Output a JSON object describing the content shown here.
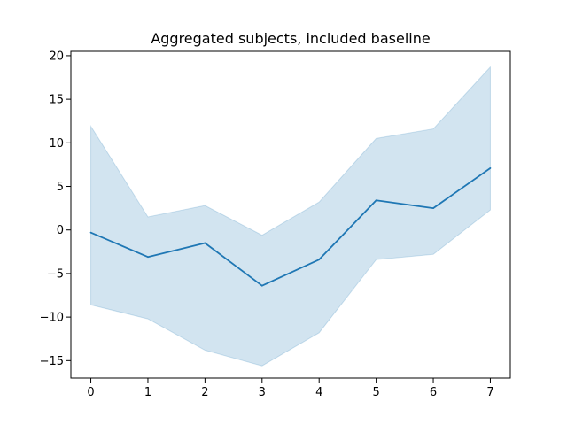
{
  "chart_data": {
    "type": "line",
    "title": "Aggregated subjects, included baseline",
    "xlabel": "",
    "ylabel": "",
    "x": [
      0,
      1,
      2,
      3,
      4,
      5,
      6,
      7
    ],
    "series": [
      {
        "values": [
          -0.3,
          -3.1,
          -1.5,
          -6.4,
          -3.4,
          3.4,
          2.5,
          7.1
        ],
        "band_upper": [
          11.9,
          1.5,
          2.8,
          -0.6,
          3.2,
          10.5,
          11.6,
          18.7
        ],
        "band_lower": [
          -8.6,
          -10.2,
          -13.8,
          -15.6,
          -11.8,
          -3.4,
          -2.8,
          2.3
        ],
        "color": "#1f77b4",
        "band_color": "#1f77b4"
      }
    ],
    "xlim": [
      -0.35,
      7.35
    ],
    "ylim": [
      -17.0,
      20.5
    ],
    "xticks": [
      "0",
      "1",
      "2",
      "3",
      "4",
      "5",
      "6",
      "7"
    ],
    "yticks": [
      "20",
      "15",
      "10",
      "5",
      "0",
      "−5",
      "−10",
      "−15"
    ],
    "grid": false,
    "legend": "none"
  }
}
